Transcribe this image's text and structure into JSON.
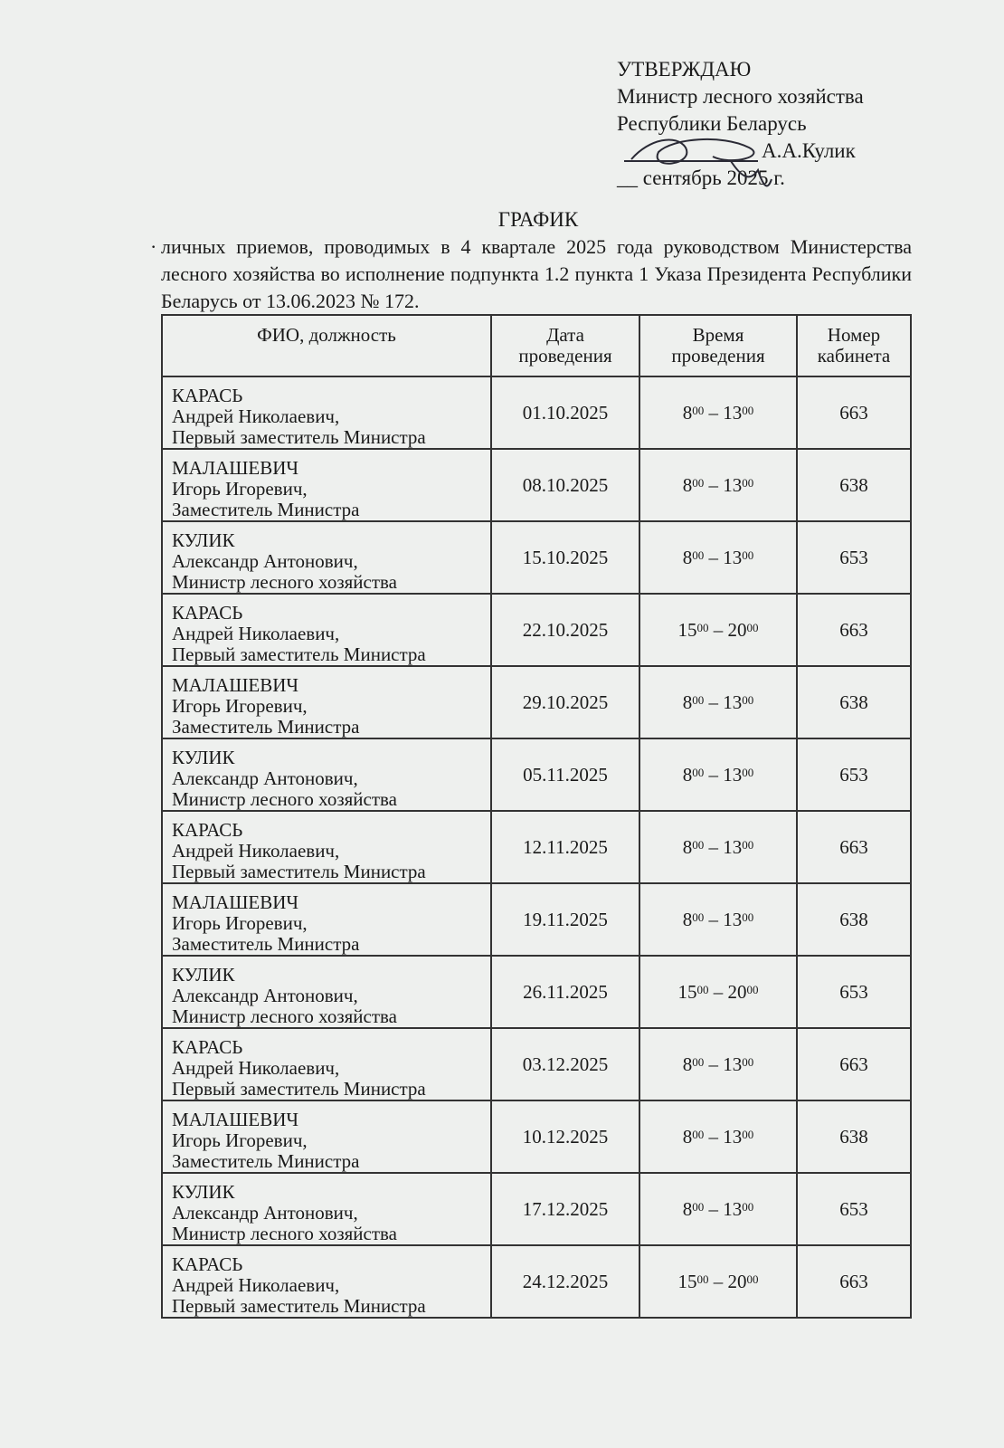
{
  "approval": {
    "heading": "УТВЕРЖДАЮ",
    "position_line1": "Министр лесного хозяйства",
    "position_line2": "Республики Беларусь",
    "signatory": "А.А.Кулик",
    "date_blank": "__",
    "date_text": "сентябрь 2025 г."
  },
  "document": {
    "title": "ГРАФИК",
    "intro": "личных приемов, проводимых в 4 квартале 2025 года руководством Министерства лесного хозяйства во исполнение подпункта 1.2 пункта 1 Указа Президента Республики Беларусь от 13.06.2023 № 172."
  },
  "table": {
    "headers": {
      "fio": "ФИО, должность",
      "date_l1": "Дата",
      "date_l2": "проведения",
      "time_l1": "Время",
      "time_l2": "проведения",
      "room_l1": "Номер",
      "room_l2": "кабинета"
    },
    "rows": [
      {
        "surname": "КАРАСЬ",
        "name": "Андрей Николаевич,",
        "position": "Первый заместитель Министра",
        "date": "01.10.2025",
        "t_start": "8",
        "t_end": "13",
        "t_min": "00",
        "dash": " – ",
        "room": "663"
      },
      {
        "surname": "МАЛАШЕВИЧ",
        "name": "Игорь Игоревич,",
        "position": "Заместитель Министра",
        "date": "08.10.2025",
        "t_start": "8",
        "t_end": "13",
        "t_min": "00",
        "dash": " – ",
        "room": "638"
      },
      {
        "surname": "КУЛИК",
        "name": "Александр Антонович,",
        "position": "Министр лесного хозяйства",
        "date": "15.10.2025",
        "t_start": "8",
        "t_end": "13",
        "t_min": "00",
        "dash": " – ",
        "room": "653"
      },
      {
        "surname": "КАРАСЬ",
        "name": "Андрей Николаевич,",
        "position": "Первый заместитель Министра",
        "date": "22.10.2025",
        "t_start": "15",
        "t_end": "20",
        "t_min": "00",
        "dash": " – ",
        "room": "663"
      },
      {
        "surname": "МАЛАШЕВИЧ",
        "name": "Игорь Игоревич,",
        "position": "Заместитель Министра",
        "date": "29.10.2025",
        "t_start": "8",
        "t_end": "13",
        "t_min": "00",
        "dash": " – ",
        "room": "638"
      },
      {
        "surname": "КУЛИК",
        "name": "Александр Антонович,",
        "position": "Министр лесного хозяйства",
        "date": "05.11.2025",
        "t_start": "8",
        "t_end": "13",
        "t_min": "00",
        "dash": " – ",
        "room": "653"
      },
      {
        "surname": "КАРАСЬ",
        "name": "Андрей Николаевич,",
        "position": "Первый заместитель Министра",
        "date": "12.11.2025",
        "t_start": "8",
        "t_end": "13",
        "t_min": "00",
        "dash": " – ",
        "room": "663"
      },
      {
        "surname": "МАЛАШЕВИЧ",
        "name": "Игорь Игоревич,",
        "position": "Заместитель Министра",
        "date": "19.11.2025",
        "t_start": "8",
        "t_end": "13",
        "t_min": "00",
        "dash": " – ",
        "room": "638"
      },
      {
        "surname": "КУЛИК",
        "name": "Александр Антонович,",
        "position": "Министр лесного хозяйства",
        "date": "26.11.2025",
        "t_start": "15",
        "t_end": "20",
        "t_min": "00",
        "dash": " – ",
        "room": "653"
      },
      {
        "surname": "КАРАСЬ",
        "name": "Андрей Николаевич,",
        "position": "Первый заместитель Министра",
        "date": "03.12.2025",
        "t_start": "8",
        "t_end": "13",
        "t_min": "00",
        "dash": " – ",
        "room": "663"
      },
      {
        "surname": "МАЛАШЕВИЧ",
        "name": "Игорь Игоревич,",
        "position": "Заместитель Министра",
        "date": "10.12.2025",
        "t_start": "8",
        "t_end": "13",
        "t_min": "00",
        "dash": " – ",
        "room": "638"
      },
      {
        "surname": "КУЛИК",
        "name": "Александр Антонович,",
        "position": "Министр лесного хозяйства",
        "date": "17.12.2025",
        "t_start": "8",
        "t_end": "13",
        "t_min": "00",
        "dash": " – ",
        "room": "653"
      },
      {
        "surname": "КАРАСЬ",
        "name": "Андрей Николаевич,",
        "position": "Первый заместитель Министра",
        "date": "24.12.2025",
        "t_start": "15",
        "t_end": "20",
        "t_min": "00",
        "dash": " – ",
        "room": "663"
      }
    ]
  }
}
